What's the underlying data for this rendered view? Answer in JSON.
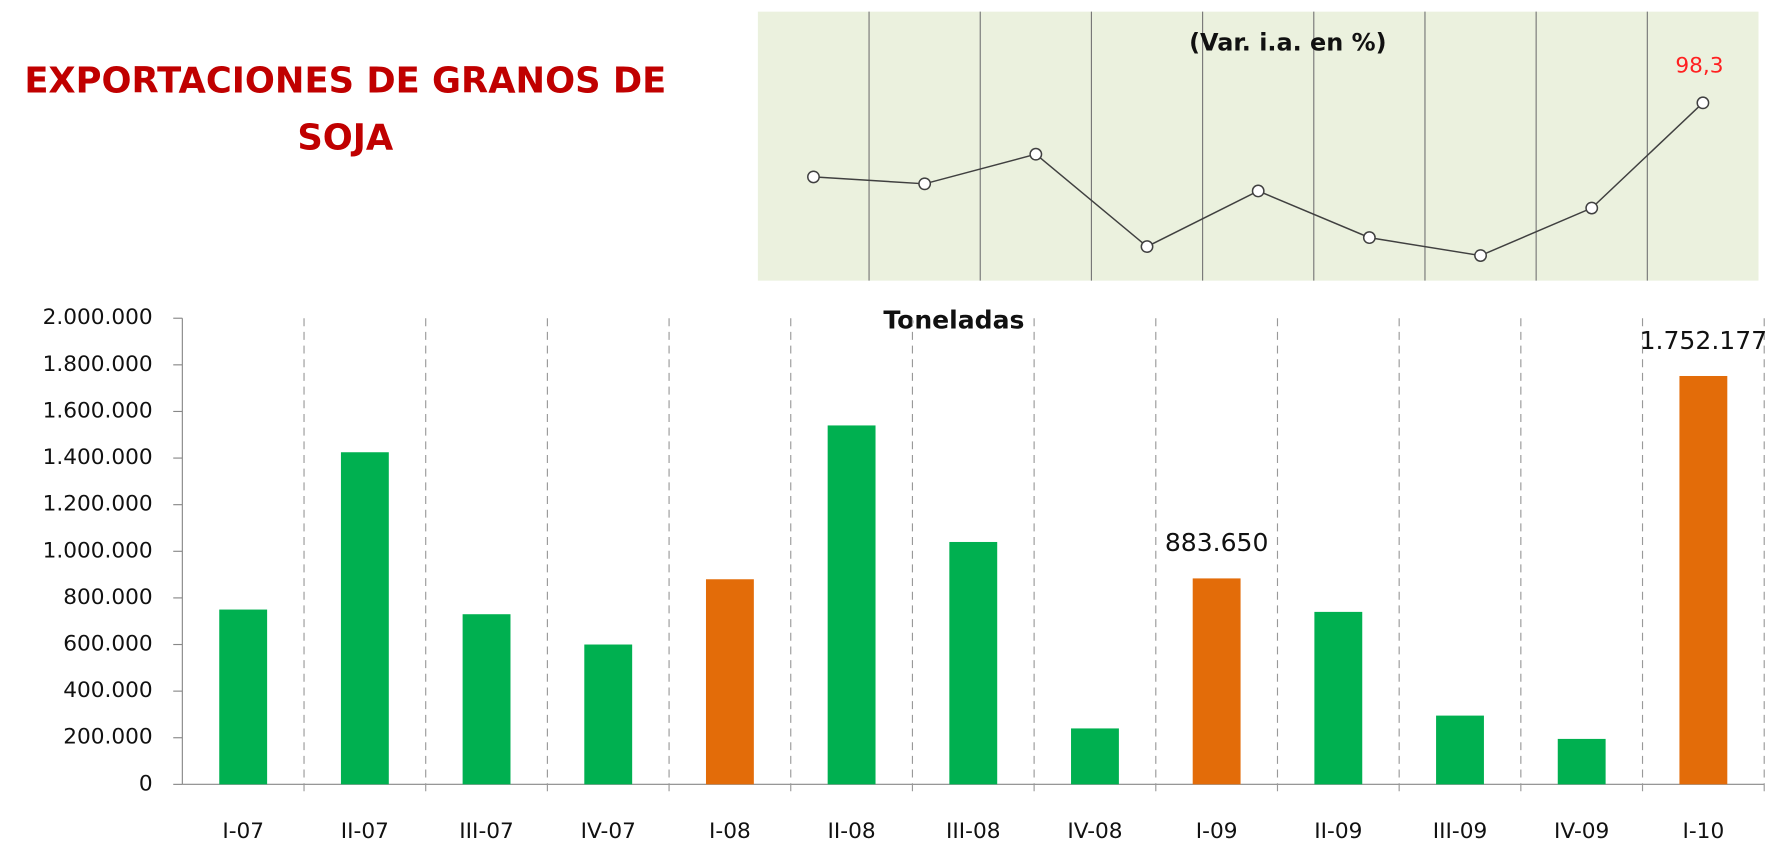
{
  "chart_data": [
    {
      "type": "bar",
      "title": "EXPORTACIONES DE GRANOS DE SOJA",
      "y_label": "Toneladas",
      "categories": [
        "I-07",
        "II-07",
        "III-07",
        "IV-07",
        "I-08",
        "II-08",
        "III-08",
        "IV-08",
        "I-09",
        "II-09",
        "III-09",
        "IV-09",
        "I-10"
      ],
      "values": [
        750000,
        1425000,
        730000,
        600000,
        880000,
        1540000,
        1040000,
        240000,
        883650,
        740000,
        295000,
        195000,
        1752177
      ],
      "value_labels": [
        null,
        null,
        null,
        null,
        null,
        null,
        null,
        null,
        "883.650",
        null,
        null,
        null,
        "1.752.177"
      ],
      "colors": [
        "#00b050",
        "#00b050",
        "#00b050",
        "#00b050",
        "#e36c09",
        "#00b050",
        "#00b050",
        "#00b050",
        "#e36c09",
        "#00b050",
        "#00b050",
        "#00b050",
        "#e36c09"
      ],
      "ylim": [
        0,
        2000000
      ],
      "yticks": [
        0,
        {
          "value": 200000,
          "label": "200.000"
        },
        {
          "value": 400000,
          "label": "400.000"
        },
        {
          "value": 600000,
          "label": "600.000"
        },
        {
          "value": 800000,
          "label": "800.000"
        },
        {
          "value": 1000000,
          "label": "1.000.000"
        },
        {
          "value": 1200000,
          "label": "1.200.000"
        },
        {
          "value": 1400000,
          "label": "1.400.000"
        },
        {
          "value": 1600000,
          "label": "1.600.000"
        },
        {
          "value": 1800000,
          "label": "1.800.000"
        },
        {
          "value": 2000000,
          "label": "2.000.000"
        }
      ]
    },
    {
      "type": "line",
      "title": "(Var. i.a. en %)",
      "values": [
        15.7,
        8,
        41,
        -62,
        0,
        -52,
        -72,
        -19,
        98.3
      ],
      "value_labels": [
        null,
        null,
        null,
        null,
        null,
        null,
        null,
        null,
        "98,3"
      ],
      "color": "#404040",
      "background": "#ebf1de"
    }
  ]
}
